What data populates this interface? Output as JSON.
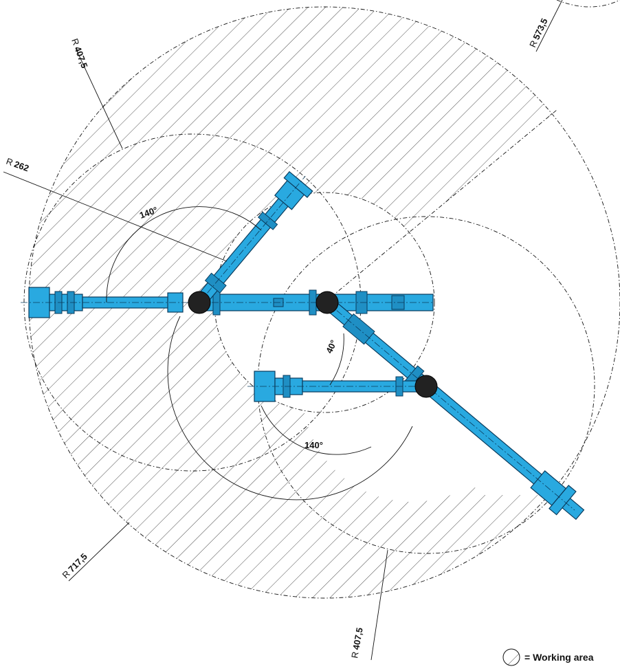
{
  "dimensions": {
    "r_outer": "717,5",
    "r_upper": "573,5",
    "r_left": "407,5",
    "r_bottom": "407,5",
    "r_inner": "262",
    "r_prefix": "R"
  },
  "angles": {
    "top_left": "140°",
    "middle": "40°",
    "bottom": "140°"
  },
  "legend": {
    "label": "= Working area"
  },
  "colors": {
    "arm": "#29a9e0",
    "hatch": "#222222"
  }
}
